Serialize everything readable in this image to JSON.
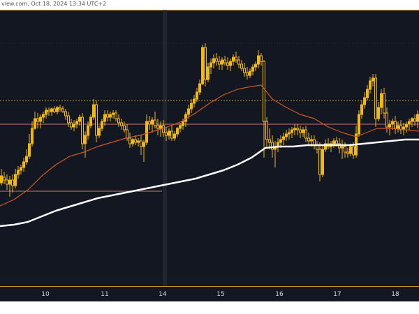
{
  "watermark": {
    "text": "view.com, Oct 18, 2024 13:34 UTC+2"
  },
  "colors": {
    "background": "#131722",
    "candle": "#f0b90b",
    "ema_fast": "#d1581f",
    "ema_slow": "#ffffff",
    "separator": "#2a2e39",
    "hline": "#c97a6a"
  },
  "chart_data": {
    "type": "candlestick",
    "title": "",
    "xlabel": "",
    "ylabel": "",
    "ylim": [
      0,
      396
    ],
    "x_ticks": [
      {
        "label": "10",
        "x": 65
      },
      {
        "label": "11",
        "x": 150
      },
      {
        "label": "14",
        "x": 233
      },
      {
        "label": "15",
        "x": 316
      },
      {
        "label": "16",
        "x": 400
      },
      {
        "label": "17",
        "x": 483
      },
      {
        "label": "18",
        "x": 566
      }
    ],
    "candles": [
      [
        2,
        248,
        228,
        252,
        238
      ],
      [
        6,
        240,
        232,
        250,
        244
      ],
      [
        10,
        244,
        236,
        258,
        250
      ],
      [
        14,
        250,
        238,
        268,
        244
      ],
      [
        18,
        244,
        236,
        262,
        252
      ],
      [
        22,
        252,
        228,
        256,
        236
      ],
      [
        26,
        236,
        224,
        242,
        230
      ],
      [
        30,
        230,
        222,
        236,
        226
      ],
      [
        34,
        226,
        212,
        232,
        218
      ],
      [
        38,
        218,
        200,
        222,
        210
      ],
      [
        42,
        210,
        178,
        214,
        192
      ],
      [
        46,
        192,
        160,
        196,
        170
      ],
      [
        50,
        170,
        146,
        172,
        156
      ],
      [
        54,
        156,
        148,
        170,
        160
      ],
      [
        58,
        160,
        150,
        170,
        154
      ],
      [
        62,
        154,
        146,
        162,
        150
      ],
      [
        66,
        150,
        140,
        156,
        144
      ],
      [
        70,
        144,
        140,
        152,
        146
      ],
      [
        74,
        146,
        140,
        152,
        142
      ],
      [
        78,
        142,
        138,
        148,
        146
      ],
      [
        82,
        146,
        138,
        150,
        140
      ],
      [
        86,
        140,
        136,
        146,
        142
      ],
      [
        90,
        142,
        138,
        148,
        146
      ],
      [
        94,
        146,
        142,
        158,
        152
      ],
      [
        98,
        152,
        146,
        168,
        162
      ],
      [
        102,
        162,
        156,
        172,
        168
      ],
      [
        106,
        168,
        158,
        174,
        164
      ],
      [
        110,
        164,
        156,
        170,
        160
      ],
      [
        114,
        160,
        150,
        166,
        154
      ],
      [
        118,
        154,
        148,
        200,
        192
      ],
      [
        122,
        192,
        174,
        212,
        180
      ],
      [
        126,
        180,
        160,
        186,
        166
      ],
      [
        130,
        166,
        150,
        170,
        154
      ],
      [
        134,
        154,
        128,
        158,
        136
      ],
      [
        138,
        136,
        130,
        190,
        180
      ],
      [
        142,
        180,
        166,
        184,
        170
      ],
      [
        146,
        170,
        156,
        174,
        160
      ],
      [
        150,
        160,
        144,
        166,
        150
      ],
      [
        154,
        150,
        144,
        160,
        154
      ],
      [
        158,
        154,
        146,
        160,
        150
      ],
      [
        162,
        150,
        144,
        156,
        148
      ],
      [
        166,
        148,
        144,
        160,
        156
      ],
      [
        170,
        156,
        150,
        168,
        162
      ],
      [
        174,
        162,
        156,
        172,
        166
      ],
      [
        178,
        166,
        160,
        176,
        172
      ],
      [
        182,
        172,
        164,
        188,
        184
      ],
      [
        186,
        184,
        176,
        198,
        192
      ],
      [
        190,
        192,
        184,
        196,
        186
      ],
      [
        194,
        186,
        180,
        194,
        190
      ],
      [
        198,
        190,
        184,
        196,
        188
      ],
      [
        202,
        188,
        180,
        208,
        196
      ],
      [
        206,
        196,
        186,
        218,
        190
      ],
      [
        210,
        190,
        150,
        194,
        160
      ],
      [
        214,
        160,
        152,
        172,
        164
      ],
      [
        218,
        164,
        154,
        176,
        158
      ],
      [
        222,
        158,
        146,
        170,
        166
      ],
      [
        226,
        166,
        156,
        180,
        170
      ],
      [
        230,
        170,
        160,
        182,
        166
      ],
      [
        234,
        166,
        158,
        182,
        176
      ],
      [
        238,
        176,
        168,
        188,
        180
      ],
      [
        242,
        180,
        170,
        186,
        174
      ],
      [
        246,
        174,
        166,
        188,
        184
      ],
      [
        250,
        184,
        174,
        188,
        178
      ],
      [
        254,
        178,
        168,
        182,
        170
      ],
      [
        258,
        170,
        162,
        176,
        166
      ],
      [
        262,
        166,
        156,
        172,
        160
      ],
      [
        266,
        160,
        146,
        168,
        150
      ],
      [
        270,
        150,
        136,
        156,
        142
      ],
      [
        274,
        142,
        128,
        148,
        134
      ],
      [
        278,
        134,
        122,
        140,
        128
      ],
      [
        282,
        128,
        112,
        132,
        118
      ],
      [
        286,
        118,
        100,
        122,
        106
      ],
      [
        290,
        106,
        50,
        108,
        54
      ],
      [
        294,
        54,
        48,
        110,
        100
      ],
      [
        298,
        100,
        76,
        104,
        82
      ],
      [
        302,
        82,
        70,
        92,
        76
      ],
      [
        306,
        76,
        64,
        84,
        70
      ],
      [
        310,
        70,
        62,
        80,
        74
      ],
      [
        314,
        74,
        66,
        86,
        78
      ],
      [
        318,
        78,
        68,
        86,
        72
      ],
      [
        322,
        72,
        66,
        80,
        76
      ],
      [
        326,
        76,
        68,
        86,
        80
      ],
      [
        330,
        80,
        70,
        88,
        74
      ],
      [
        334,
        74,
        64,
        80,
        68
      ],
      [
        338,
        68,
        60,
        76,
        72
      ],
      [
        342,
        72,
        66,
        84,
        78
      ],
      [
        346,
        78,
        72,
        88,
        84
      ],
      [
        350,
        84,
        76,
        96,
        90
      ],
      [
        354,
        90,
        82,
        100,
        94
      ],
      [
        358,
        94,
        84,
        98,
        88
      ],
      [
        362,
        88,
        78,
        94,
        82
      ],
      [
        366,
        82,
        74,
        88,
        78
      ],
      [
        370,
        78,
        58,
        84,
        66
      ],
      [
        374,
        66,
        62,
        80,
        74
      ],
      [
        378,
        74,
        72,
        212,
        160
      ],
      [
        382,
        160,
        154,
        196,
        186
      ],
      [
        386,
        186,
        170,
        200,
        190
      ],
      [
        390,
        190,
        180,
        212,
        200
      ],
      [
        394,
        200,
        188,
        226,
        196
      ],
      [
        398,
        196,
        184,
        204,
        190
      ],
      [
        402,
        190,
        180,
        198,
        186
      ],
      [
        406,
        186,
        176,
        194,
        182
      ],
      [
        410,
        182,
        172,
        188,
        178
      ],
      [
        414,
        178,
        170,
        186,
        176
      ],
      [
        418,
        176,
        168,
        184,
        172
      ],
      [
        422,
        172,
        164,
        180,
        170
      ],
      [
        426,
        170,
        164,
        180,
        172
      ],
      [
        430,
        172,
        166,
        184,
        176
      ],
      [
        434,
        176,
        168,
        182,
        172
      ],
      [
        438,
        172,
        166,
        190,
        184
      ],
      [
        442,
        184,
        176,
        194,
        188
      ],
      [
        446,
        188,
        180,
        196,
        186
      ],
      [
        450,
        186,
        180,
        200,
        194
      ],
      [
        454,
        194,
        188,
        206,
        200
      ],
      [
        458,
        200,
        190,
        246,
        236
      ],
      [
        462,
        236,
        194,
        240,
        200
      ],
      [
        466,
        200,
        186,
        204,
        192
      ],
      [
        470,
        192,
        184,
        200,
        196
      ],
      [
        474,
        196,
        188,
        204,
        192
      ],
      [
        478,
        192,
        184,
        198,
        188
      ],
      [
        482,
        188,
        182,
        196,
        192
      ],
      [
        486,
        192,
        184,
        206,
        198
      ],
      [
        490,
        198,
        186,
        214,
        196
      ],
      [
        494,
        196,
        190,
        212,
        204
      ],
      [
        498,
        204,
        198,
        212,
        206
      ],
      [
        502,
        206,
        192,
        210,
        196
      ],
      [
        506,
        196,
        190,
        214,
        208
      ],
      [
        510,
        208,
        166,
        212,
        178
      ],
      [
        514,
        178,
        144,
        182,
        150
      ],
      [
        518,
        150,
        130,
        156,
        136
      ],
      [
        522,
        136,
        118,
        142,
        126
      ],
      [
        526,
        126,
        108,
        130,
        114
      ],
      [
        530,
        114,
        96,
        120,
        102
      ],
      [
        534,
        102,
        92,
        110,
        98
      ],
      [
        538,
        98,
        92,
        168,
        156
      ],
      [
        542,
        156,
        132,
        160,
        140
      ],
      [
        546,
        140,
        114,
        150,
        120
      ],
      [
        550,
        120,
        112,
        156,
        148
      ],
      [
        554,
        148,
        140,
        176,
        168
      ],
      [
        558,
        168,
        158,
        180,
        164
      ],
      [
        562,
        164,
        156,
        172,
        160
      ],
      [
        566,
        160,
        152,
        178,
        170
      ],
      [
        570,
        170,
        160,
        176,
        166
      ],
      [
        574,
        166,
        158,
        178,
        172
      ],
      [
        578,
        172,
        162,
        180,
        168
      ],
      [
        582,
        168,
        160,
        176,
        164
      ],
      [
        586,
        164,
        156,
        172,
        160
      ],
      [
        590,
        160,
        154,
        168,
        156
      ],
      [
        594,
        156,
        150,
        166,
        160
      ],
      [
        598,
        160,
        144,
        170,
        150
      ]
    ],
    "ema_fast": [
      [
        0,
        281
      ],
      [
        20,
        272
      ],
      [
        40,
        258
      ],
      [
        60,
        238
      ],
      [
        80,
        222
      ],
      [
        100,
        210
      ],
      [
        120,
        204
      ],
      [
        140,
        196
      ],
      [
        160,
        190
      ],
      [
        180,
        184
      ],
      [
        200,
        180
      ],
      [
        220,
        174
      ],
      [
        240,
        168
      ],
      [
        260,
        160
      ],
      [
        280,
        148
      ],
      [
        300,
        134
      ],
      [
        320,
        122
      ],
      [
        340,
        114
      ],
      [
        360,
        110
      ],
      [
        374,
        108
      ],
      [
        390,
        128
      ],
      [
        410,
        140
      ],
      [
        430,
        150
      ],
      [
        450,
        156
      ],
      [
        470,
        168
      ],
      [
        490,
        176
      ],
      [
        510,
        182
      ],
      [
        525,
        176
      ],
      [
        540,
        170
      ],
      [
        560,
        170
      ],
      [
        580,
        172
      ],
      [
        600,
        174
      ]
    ],
    "ema_slow": [
      [
        0,
        310
      ],
      [
        20,
        308
      ],
      [
        40,
        304
      ],
      [
        60,
        296
      ],
      [
        80,
        288
      ],
      [
        100,
        282
      ],
      [
        120,
        276
      ],
      [
        140,
        270
      ],
      [
        160,
        266
      ],
      [
        180,
        262
      ],
      [
        200,
        258
      ],
      [
        220,
        254
      ],
      [
        240,
        250
      ],
      [
        260,
        246
      ],
      [
        280,
        242
      ],
      [
        300,
        236
      ],
      [
        320,
        230
      ],
      [
        340,
        222
      ],
      [
        360,
        212
      ],
      [
        380,
        198
      ],
      [
        400,
        196
      ],
      [
        420,
        196
      ],
      [
        440,
        194
      ],
      [
        460,
        194
      ],
      [
        480,
        194
      ],
      [
        500,
        194
      ],
      [
        520,
        192
      ],
      [
        540,
        190
      ],
      [
        560,
        188
      ],
      [
        580,
        186
      ],
      [
        600,
        186
      ]
    ],
    "hlines": [
      {
        "y": 130,
        "x1": 0,
        "x2": 600,
        "color": "#c9951f",
        "dash": "2,2"
      },
      {
        "y": 164,
        "x1": 0,
        "x2": 600,
        "color": "#c97a6a",
        "dash": ""
      },
      {
        "y": 260,
        "x1": 0,
        "x2": 232,
        "color": "#c97a6a",
        "dash": ""
      },
      {
        "y": 48,
        "x1": 0,
        "x2": 600,
        "color": "#2a2e39",
        "dash": "1,3"
      },
      {
        "y": 386,
        "x1": 0,
        "x2": 600,
        "color": "#2a2e39",
        "dash": "1,3"
      }
    ],
    "separator_x": 236
  }
}
